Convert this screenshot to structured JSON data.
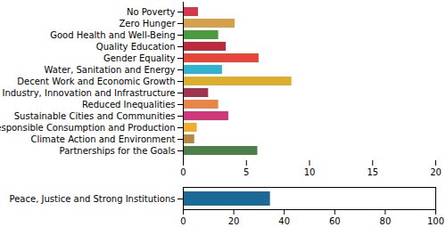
{
  "chart_data": [
    {
      "type": "bar",
      "orientation": "horizontal",
      "categories": [
        "No Poverty",
        "Zero Hunger",
        "Good Health and Well-Being",
        "Quality Education",
        "Gender Equality",
        "Water, Sanitation and Energy",
        "Decent Work and Economic Growth",
        "Industry, Innovation and Infrastructure",
        "Reduced Inequalities",
        "Sustainable Cities and Communities",
        "Responsible Consumption and Production",
        "Climate Action and Environment",
        "Partnerships for the Goals"
      ],
      "values": [
        1.2,
        4.1,
        2.8,
        3.4,
        6.0,
        3.1,
        8.6,
        2.0,
        2.8,
        3.6,
        1.1,
        0.9,
        5.9
      ],
      "colors": [
        "#d03a4a",
        "#d4a04a",
        "#4c9a3e",
        "#c0283b",
        "#e5463a",
        "#2eb4d1",
        "#dcae2e",
        "#a2344e",
        "#e88548",
        "#d2377a",
        "#ecad31",
        "#b4893f",
        "#4d7f4a"
      ],
      "xlim": [
        0,
        20
      ],
      "xticks": [
        0,
        5,
        10,
        15,
        20
      ]
    },
    {
      "type": "bar",
      "orientation": "horizontal",
      "categories": [
        "Peace, Justice and Strong Institutions"
      ],
      "values": [
        34.5
      ],
      "colors": [
        "#1a6a97"
      ],
      "xlim": [
        0,
        100
      ],
      "xticks": [
        0,
        20,
        40,
        60,
        80,
        100
      ]
    }
  ]
}
